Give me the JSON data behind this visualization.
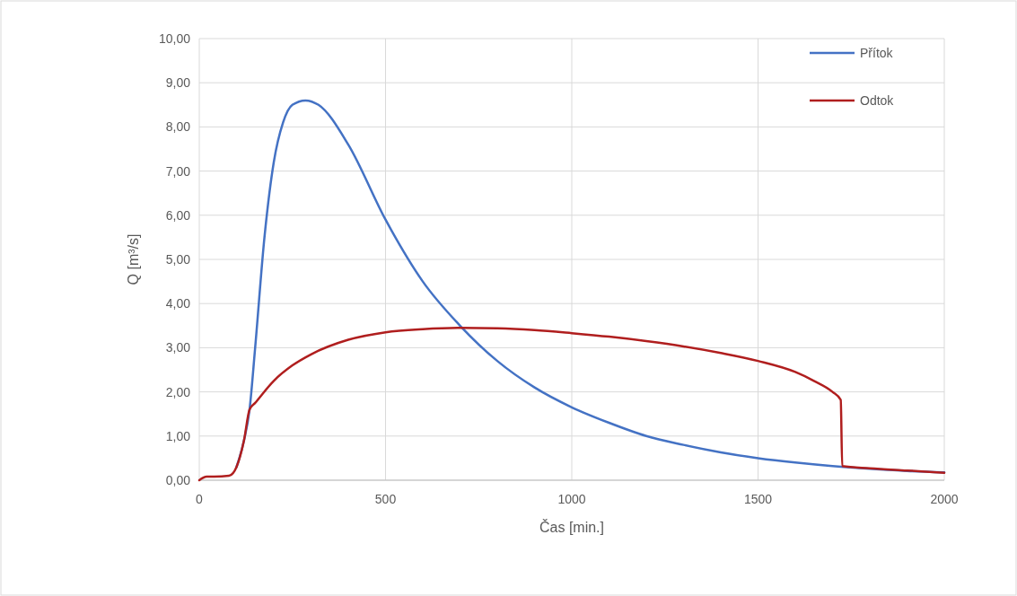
{
  "chart_data": {
    "type": "line",
    "xlabel": "Čas [min.]",
    "ylabel": "Q [m³/s]",
    "xlim": [
      0,
      2000
    ],
    "xticks": [
      0,
      500,
      1000,
      1500,
      2000
    ],
    "ylim": [
      0,
      10
    ],
    "yticks": [
      {
        "value": 0,
        "label": "0,00"
      },
      {
        "value": 1,
        "label": "1,00"
      },
      {
        "value": 2,
        "label": "2,00"
      },
      {
        "value": 3,
        "label": "3,00"
      },
      {
        "value": 4,
        "label": "4,00"
      },
      {
        "value": 5,
        "label": "5,00"
      },
      {
        "value": 6,
        "label": "6,00"
      },
      {
        "value": 7,
        "label": "7,00"
      },
      {
        "value": 8,
        "label": "8,00"
      },
      {
        "value": 9,
        "label": "9,00"
      },
      {
        "value": 10,
        "label": "10,00"
      }
    ],
    "grid": true,
    "legend": "top right",
    "marker": "none",
    "line_style": "solid",
    "series": [
      {
        "name": "Přítok",
        "color": "#4472c4",
        "x": [
          100,
          120,
          135,
          150,
          175,
          200,
          225,
          250,
          285,
          320,
          400,
          500,
          600,
          700,
          800,
          900,
          1000,
          1100,
          1200,
          1300,
          1400,
          1500,
          1600,
          1700,
          1730,
          1800,
          1900,
          2000
        ],
        "values": [
          0.3,
          0.9,
          1.6,
          3.0,
          5.5,
          7.2,
          8.1,
          8.5,
          8.6,
          8.5,
          7.6,
          5.9,
          4.5,
          3.5,
          2.7,
          2.1,
          1.65,
          1.3,
          1.0,
          0.8,
          0.63,
          0.5,
          0.4,
          0.32,
          0.3,
          0.26,
          0.21,
          0.18
        ]
      },
      {
        "name": "Odtok",
        "color": "#b01e1e",
        "x": [
          0,
          20,
          40,
          80,
          100,
          120,
          135,
          150,
          200,
          250,
          300,
          400,
          500,
          600,
          700,
          800,
          900,
          1000,
          1100,
          1200,
          1300,
          1400,
          1500,
          1600,
          1650,
          1700,
          1722,
          1726,
          1800,
          1900,
          2000
        ],
        "values": [
          0,
          0.08,
          0.08,
          0.1,
          0.3,
          0.9,
          1.6,
          1.75,
          2.25,
          2.6,
          2.85,
          3.18,
          3.35,
          3.42,
          3.45,
          3.44,
          3.4,
          3.33,
          3.25,
          3.15,
          3.03,
          2.88,
          2.7,
          2.45,
          2.25,
          2.0,
          1.82,
          0.32,
          0.27,
          0.22,
          0.17
        ]
      }
    ]
  }
}
